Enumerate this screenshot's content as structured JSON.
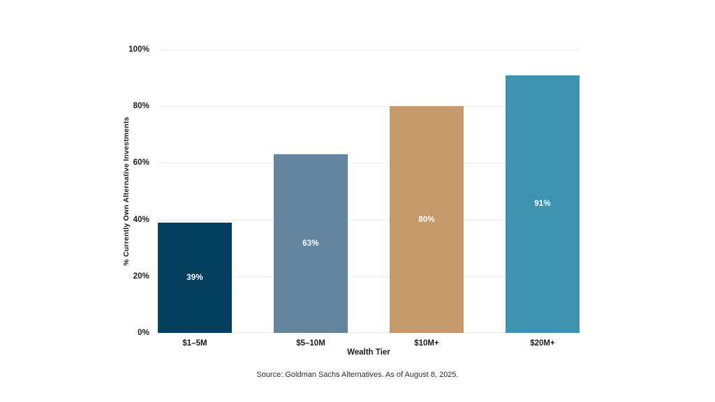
{
  "chart_data": {
    "type": "bar",
    "categories": [
      "$1–5M",
      "$5–10M",
      "$10M+",
      "$20M+"
    ],
    "values": [
      39,
      63,
      80,
      91
    ],
    "value_labels": [
      "39%",
      "63%",
      "80%",
      "91%"
    ],
    "bar_colors": [
      "#04405e",
      "#65849e",
      "#c49a6c",
      "#3e93ae"
    ],
    "title": "",
    "xlabel": "Wealth Tier",
    "ylabel": "% Currently Own Alternative Investments",
    "ylim": [
      0,
      100
    ],
    "yticks": [
      "100%",
      "80%",
      "60%",
      "40%",
      "20%",
      "0%"
    ],
    "grid": true,
    "legend": false,
    "value_label_color": "#ffffff",
    "gridline_color": "#ececec"
  },
  "footer": {
    "source": "Source: Goldman Sachs Alternatives. As of August 8, 2025."
  }
}
